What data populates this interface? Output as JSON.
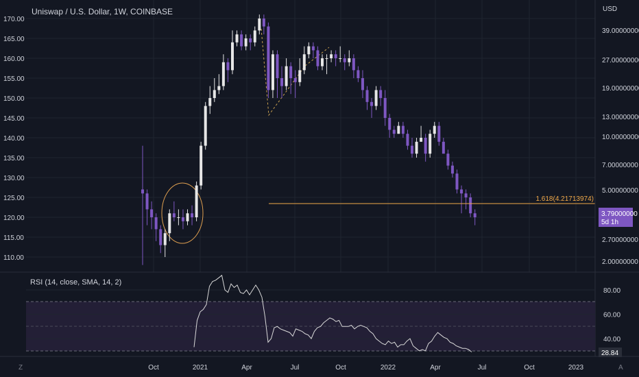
{
  "header": {
    "title": "Uniswap / U.S. Dollar, 1W, COINBASE",
    "currency": "USD"
  },
  "price_badge": {
    "value": "3.79000000",
    "countdown": "5d 1h"
  },
  "fib_label": "1.618(4.21713974)",
  "rsi": {
    "label": "RSI (14, close, SMA, 14, 2)",
    "value_badge": "28.84"
  },
  "footer": {
    "left_icon": "Z",
    "right_icon": "A"
  },
  "colors": {
    "background": "#131722",
    "bull": "#e6e6e6",
    "bear": "#7e57c2",
    "fib_line": "#f0a848",
    "rsi_line": "#d9d9d9",
    "rsi_band": "#27233a"
  },
  "chart_data": [
    {
      "type": "candlestick",
      "title": "Uniswap / U.S. Dollar, 1W, COINBASE",
      "right_axis_label": "USD",
      "left_ticks": [
        "170.00",
        "165.00",
        "160.00",
        "155.00",
        "150.00",
        "145.00",
        "140.00",
        "135.00",
        "130.00",
        "125.00",
        "120.00",
        "115.00",
        "110.00"
      ],
      "right_ticks": [
        "39.00000000",
        "27.00000000",
        "19.00000000",
        "13.00000000",
        "10.00000000",
        "7.00000000",
        "5.00000000",
        "3.79000000",
        "2.70000000",
        "2.00000000"
      ],
      "x_ticks": [
        "Oct",
        "2021",
        "Apr",
        "Jul",
        "Oct",
        "2022",
        "Apr",
        "Jul",
        "Oct",
        "2023"
      ],
      "candles": [
        [
          127,
          126,
          138,
          108
        ],
        [
          126,
          122,
          127,
          118
        ],
        [
          122,
          120,
          124,
          117
        ],
        [
          120,
          117,
          121,
          114
        ],
        [
          117,
          113,
          118,
          111
        ],
        [
          113,
          116,
          117,
          110
        ],
        [
          116,
          121,
          122,
          114
        ],
        [
          121,
          120,
          124,
          119
        ],
        [
          120,
          120,
          122,
          118
        ],
        [
          120,
          119,
          122,
          117
        ],
        [
          119,
          121,
          122,
          118
        ],
        [
          121,
          120,
          123,
          118
        ],
        [
          120,
          128,
          129,
          119
        ],
        [
          128,
          138,
          139,
          127
        ],
        [
          138,
          148,
          149,
          137
        ],
        [
          148,
          150,
          153,
          146
        ],
        [
          150,
          152,
          155,
          149
        ],
        [
          152,
          153,
          156,
          151
        ],
        [
          153,
          159,
          161,
          152
        ],
        [
          159,
          157,
          160,
          154
        ],
        [
          157,
          164,
          167,
          156
        ],
        [
          164,
          166,
          167,
          163
        ],
        [
          166,
          163,
          167,
          162
        ],
        [
          163,
          165,
          166,
          162
        ],
        [
          165,
          164,
          166,
          162
        ],
        [
          164,
          167,
          168,
          163
        ],
        [
          167,
          170,
          171,
          166
        ],
        [
          170,
          168,
          171,
          166
        ],
        [
          168,
          152,
          169,
          150
        ],
        [
          152,
          161,
          162,
          150
        ],
        [
          161,
          155,
          162,
          150
        ],
        [
          155,
          153,
          158,
          150
        ],
        [
          153,
          158,
          160,
          152
        ],
        [
          158,
          155,
          159,
          151
        ],
        [
          155,
          154,
          157,
          150
        ],
        [
          154,
          157,
          160,
          153
        ],
        [
          157,
          161,
          163,
          156
        ],
        [
          161,
          163,
          164,
          160
        ],
        [
          163,
          162,
          164,
          160
        ],
        [
          162,
          158,
          163,
          157
        ],
        [
          158,
          160,
          161,
          157
        ],
        [
          160,
          160,
          161,
          156
        ],
        [
          160,
          161,
          162,
          159
        ],
        [
          161,
          160,
          162,
          158
        ],
        [
          160,
          160,
          163,
          159
        ],
        [
          160,
          159,
          161,
          157
        ],
        [
          159,
          160,
          162,
          158
        ],
        [
          160,
          157,
          161,
          155
        ],
        [
          157,
          155,
          158,
          154
        ],
        [
          155,
          152,
          157,
          150
        ],
        [
          152,
          149,
          153,
          147
        ],
        [
          149,
          148,
          150,
          145
        ],
        [
          148,
          152,
          153,
          147
        ],
        [
          152,
          150,
          153,
          148
        ],
        [
          150,
          145,
          152,
          143
        ],
        [
          145,
          142,
          146,
          140
        ],
        [
          142,
          141,
          143,
          140
        ],
        [
          141,
          143,
          144,
          141
        ],
        [
          143,
          141,
          144,
          140
        ],
        [
          141,
          138,
          142,
          137
        ],
        [
          138,
          136,
          140,
          135
        ],
        [
          136,
          139,
          140,
          135
        ],
        [
          139,
          140,
          143,
          139
        ],
        [
          140,
          136,
          141,
          134
        ],
        [
          136,
          141,
          142,
          135
        ],
        [
          141,
          143,
          144,
          140
        ],
        [
          143,
          139,
          144,
          138
        ],
        [
          139,
          136,
          140,
          136
        ],
        [
          136,
          133,
          137,
          132
        ],
        [
          133,
          131,
          134,
          130
        ],
        [
          131,
          127,
          132,
          126
        ],
        [
          127,
          126,
          128,
          121
        ],
        [
          126,
          125,
          127,
          122
        ],
        [
          125,
          121,
          126,
          120
        ],
        [
          121,
          120,
          122,
          118
        ]
      ],
      "fib_level": {
        "ratio": 1.618,
        "value": 4.21713974
      }
    },
    {
      "type": "line",
      "title": "RSI (14, close, SMA, 14, 2)",
      "y_ticks": [
        "80.00",
        "60.00",
        "40.00"
      ],
      "current": 28.84,
      "bands": [
        30,
        70
      ],
      "values": [
        33,
        55,
        62,
        64,
        68,
        83,
        87,
        88,
        90,
        92,
        80,
        78,
        85,
        82,
        84,
        78,
        77,
        80,
        76,
        80,
        84,
        80,
        74,
        58,
        37,
        40,
        49,
        50,
        48,
        47,
        46,
        45,
        42,
        48,
        47,
        46,
        44,
        43,
        40,
        46,
        49,
        50,
        53,
        55,
        57,
        56,
        54,
        55,
        50,
        50,
        50,
        51,
        48,
        50,
        51,
        50,
        49,
        46,
        44,
        40,
        38,
        36,
        35,
        38,
        36,
        37,
        33,
        35,
        35,
        38,
        40,
        34,
        32,
        30,
        31,
        30,
        36,
        38,
        42,
        45,
        43,
        41,
        40,
        37,
        36,
        34,
        33,
        32,
        32,
        31,
        29
      ]
    }
  ]
}
